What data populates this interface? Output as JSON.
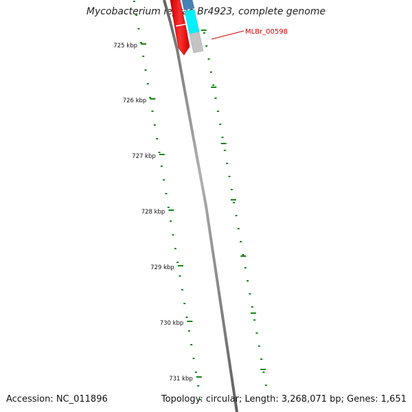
{
  "title": "Mycobacterium leprae Br4923, complete genome",
  "accession_text": "Accession: NC_011896",
  "summary_text": "Topology: circular; Length: 3,268,071 bp; Genes: 1,651",
  "scale_labels": [
    {
      "label": "725 kbp",
      "kbp": 725
    },
    {
      "label": "726 kbp",
      "kbp": 726
    },
    {
      "label": "727 kbp",
      "kbp": 727
    },
    {
      "label": "728 kbp",
      "kbp": 728
    },
    {
      "label": "729 kbp",
      "kbp": 729
    },
    {
      "label": "730 kbp",
      "kbp": 730
    },
    {
      "label": "731 kbp",
      "kbp": 731
    }
  ],
  "gene_label": "MLBr_00598",
  "colors": {
    "backbone": "#808080",
    "scale_ticks": "#118811",
    "reverse_cds": "#ff0000",
    "forward_cds": "#00ffff",
    "forward_gene": "#4682b4",
    "gene_marker": "#b4b4b4",
    "gene_label": "#d40000"
  }
}
